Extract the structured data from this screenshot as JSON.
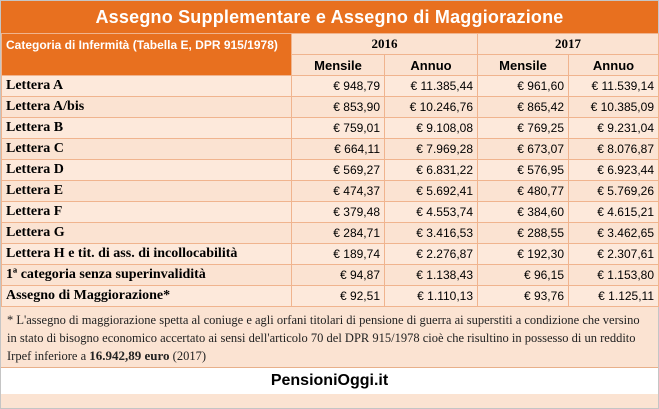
{
  "title": "Assegno Supplementare e Assegno di Maggiorazione",
  "header": {
    "category_label": "Categoria di Infermità (Tabella E, DPR 915/1978)",
    "year_2016": "2016",
    "year_2017": "2017",
    "mensile": "Mensile",
    "annuo": "Annuo"
  },
  "rows": [
    {
      "category": "Lettera  A",
      "m2016": "€ 948,79",
      "a2016": "€ 11.385,44",
      "m2017": "€ 961,60",
      "a2017": "€ 11.539,14"
    },
    {
      "category": "Lettera A/bis",
      "m2016": "€ 853,90",
      "a2016": "€ 10.246,76",
      "m2017": "€ 865,42",
      "a2017": "€ 10.385,09"
    },
    {
      "category": "Lettera  B",
      "m2016": "€ 759,01",
      "a2016": "€ 9.108,08",
      "m2017": "€ 769,25",
      "a2017": "€ 9.231,04"
    },
    {
      "category": "Lettera  C",
      "m2016": "€ 664,11",
      "a2016": "€ 7.969,28",
      "m2017": "€ 673,07",
      "a2017": "€ 8.076,87"
    },
    {
      "category": "Lettera  D",
      "m2016": "€ 569,27",
      "a2016": "€ 6.831,22",
      "m2017": "€ 576,95",
      "a2017": "€ 6.923,44"
    },
    {
      "category": "Lettera  E",
      "m2016": "€ 474,37",
      "a2016": "€ 5.692,41",
      "m2017": "€ 480,77",
      "a2017": "€ 5.769,26"
    },
    {
      "category": "Lettera  F",
      "m2016": "€ 379,48",
      "a2016": "€ 4.553,74",
      "m2017": "€ 384,60",
      "a2017": "€ 4.615,21"
    },
    {
      "category": "Lettera  G",
      "m2016": "€ 284,71",
      "a2016": "€ 3.416,53",
      "m2017": "€ 288,55",
      "a2017": "€ 3.462,65"
    },
    {
      "category": "Lettera H e tit. di ass. di incollocabilità",
      "m2016": "€ 189,74",
      "a2016": "€ 2.276,87",
      "m2017": "€ 192,30",
      "a2017": "€ 2.307,61"
    },
    {
      "category": "1ª categoria senza superinvalidità",
      "m2016": "€ 94,87",
      "a2016": "€ 1.138,43",
      "m2017": "€ 96,15",
      "a2017": "€ 1.153,80"
    },
    {
      "category": "Assegno di Maggiorazione*",
      "m2016": "€ 92,51",
      "a2016": "€ 1.110,13",
      "m2017": "€ 93,76",
      "a2017": "€ 1.125,11"
    }
  ],
  "note": {
    "text_before": "* L'assegno di maggiorazione spetta al coniuge e agli orfani titolari di pensione di guerra ai superstiti a condizione che versino in stato di bisogno economico accertato ai sensi dell'articolo 70 del DPR 915/1978 cioè che risultino in possesso di un reddito Irpef inferiore a ",
    "amount": "16.942,89 euro",
    "text_after": " (2017)"
  },
  "footer": "PensioniOggi.it",
  "colors": {
    "accent": "#e8701f",
    "row_bg": "#fbe3d2"
  }
}
